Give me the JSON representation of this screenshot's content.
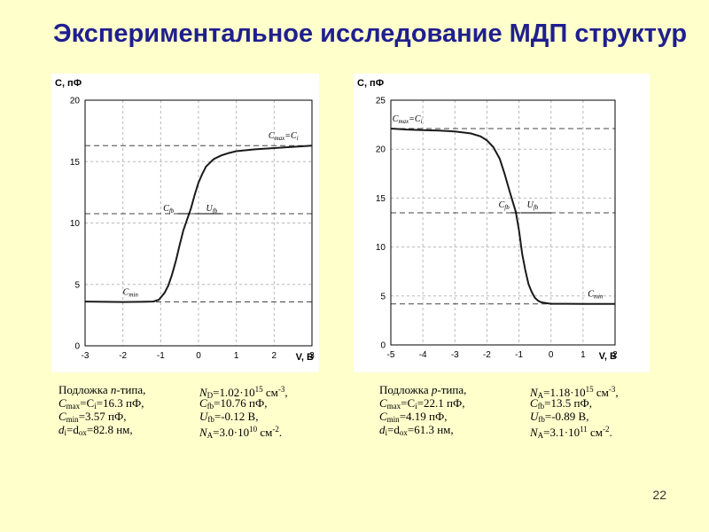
{
  "slide": {
    "title": "Экспериментальное исследование МДП структур",
    "page_number": "22"
  },
  "chart_data": [
    {
      "type": "line",
      "ylabel": "С, пФ",
      "xlabel": "V, В",
      "xlim": [
        -3,
        3
      ],
      "ylim": [
        0,
        20
      ],
      "xticks": [
        "-3",
        "-2",
        "-1",
        "0",
        "1",
        "2",
        "3"
      ],
      "yticks": [
        "0",
        "5",
        "10",
        "15",
        "20"
      ],
      "grid": true,
      "reference_lines": [
        16.3,
        10.76,
        3.57
      ],
      "annotations": {
        "cmax": "C",
        "cmax_sub": "max",
        "cmax_rest": "=C",
        "cmax_rest_sub": "i",
        "cfb": "C",
        "cfb_sub": "fb",
        "ufb": "U",
        "ufb_sub": "fb",
        "cmin": "C",
        "cmin_sub": "min"
      },
      "series": [
        {
          "x": [
            -3,
            -2.5,
            -2.0,
            -1.5,
            -1.2,
            -1.05,
            -0.9,
            -0.8,
            -0.7,
            -0.6,
            -0.5,
            -0.4,
            -0.3,
            -0.2,
            -0.1,
            0.0,
            0.1,
            0.2,
            0.4,
            0.6,
            0.8,
            1.0,
            1.5,
            2.0,
            2.5,
            3.0
          ],
          "y": [
            3.6,
            3.58,
            3.57,
            3.58,
            3.6,
            3.75,
            4.3,
            4.9,
            5.8,
            6.9,
            8.2,
            9.4,
            10.3,
            11.2,
            12.3,
            13.3,
            14.0,
            14.6,
            15.2,
            15.5,
            15.7,
            15.85,
            16.0,
            16.1,
            16.2,
            16.3
          ]
        }
      ]
    },
    {
      "type": "line",
      "ylabel": "С, пФ",
      "xlabel": "V, В",
      "xlim": [
        -5,
        2
      ],
      "ylim": [
        0,
        25
      ],
      "xticks": [
        "-5",
        "-4",
        "-3",
        "-2",
        "-1",
        "0",
        "1",
        "2"
      ],
      "yticks": [
        "0",
        "5",
        "10",
        "15",
        "20",
        "25"
      ],
      "grid": true,
      "reference_lines": [
        22.1,
        13.5,
        4.19
      ],
      "annotations": {
        "cmax": "C",
        "cmax_sub": "max",
        "cmax_rest": "=C",
        "cmax_rest_sub": "i",
        "cfb": "C",
        "cfb_sub": "fb",
        "ufb": "U",
        "ufb_sub": "fb",
        "cmin": "C",
        "cmin_sub": "min"
      },
      "series": [
        {
          "x": [
            -5.0,
            -4.5,
            -4.0,
            -3.5,
            -3.0,
            -2.5,
            -2.2,
            -2.0,
            -1.8,
            -1.6,
            -1.45,
            -1.3,
            -1.2,
            -1.1,
            -1.0,
            -0.9,
            -0.8,
            -0.7,
            -0.6,
            -0.5,
            -0.4,
            -0.3,
            -0.1,
            0.0,
            0.5,
            1.0,
            2.0
          ],
          "y": [
            22.1,
            22.0,
            21.95,
            21.9,
            21.8,
            21.6,
            21.3,
            20.9,
            20.2,
            19.0,
            17.5,
            15.8,
            14.7,
            13.6,
            11.7,
            9.3,
            7.6,
            6.2,
            5.4,
            4.8,
            4.5,
            4.35,
            4.25,
            4.2,
            4.2,
            4.19,
            4.19
          ]
        }
      ]
    }
  ],
  "params_left_col1": [
    {
      "a": "Подложка ",
      "b": "n",
      "c": "-типа,"
    },
    {
      "a": "C",
      "as": "max",
      "b": "=C",
      "bs": "i",
      "c": "=16.3 пФ,"
    },
    {
      "a": "C",
      "as": "min",
      "b": "=3.57 пФ,"
    },
    {
      "a": "d",
      "as": "i",
      "b": "=d",
      "bs": "ox",
      "c": "=82.8 нм,"
    }
  ],
  "params_left_col2": [
    {
      "a": "N",
      "as": "D",
      "b": "=1.02·10",
      "bp": "15",
      "c": " см",
      "cp": "-3",
      "d": ","
    },
    {
      "a": "C",
      "as": "fb",
      "b": "=10.76 пФ,"
    },
    {
      "a": "U",
      "as": "fb",
      "b": "=-0.12 В,"
    },
    {
      "a": "N",
      "as": "A",
      "b": "=3.0·10",
      "bp": "10",
      "c": " см",
      "cp": "-2",
      "d": "."
    }
  ],
  "params_right_col1": [
    {
      "a": "Подложка ",
      "b": "p",
      "c": "-типа,"
    },
    {
      "a": "C",
      "as": "max",
      "b": "=C",
      "bs": "i",
      "c": "=22.1 пФ,"
    },
    {
      "a": "C",
      "as": "min",
      "b": "=4.19 пФ,"
    },
    {
      "a": "d",
      "as": "i",
      "b": "=d",
      "bs": "ox",
      "c": "=61.3 нм,"
    }
  ],
  "params_right_col2": [
    {
      "a": "N",
      "as": "A",
      "b": "=1.18·10",
      "bp": "15",
      "c": " см",
      "cp": "-3",
      "d": ","
    },
    {
      "a": "C",
      "as": "fb",
      "b": "=13.5 пФ,"
    },
    {
      "a": "U",
      "as": "fb",
      "b": "=-0.89 В,"
    },
    {
      "a": "N",
      "as": "A",
      "b": "=3.1·10",
      "bp": "11",
      "c": " см",
      "cp": "-2",
      "d": "."
    }
  ]
}
